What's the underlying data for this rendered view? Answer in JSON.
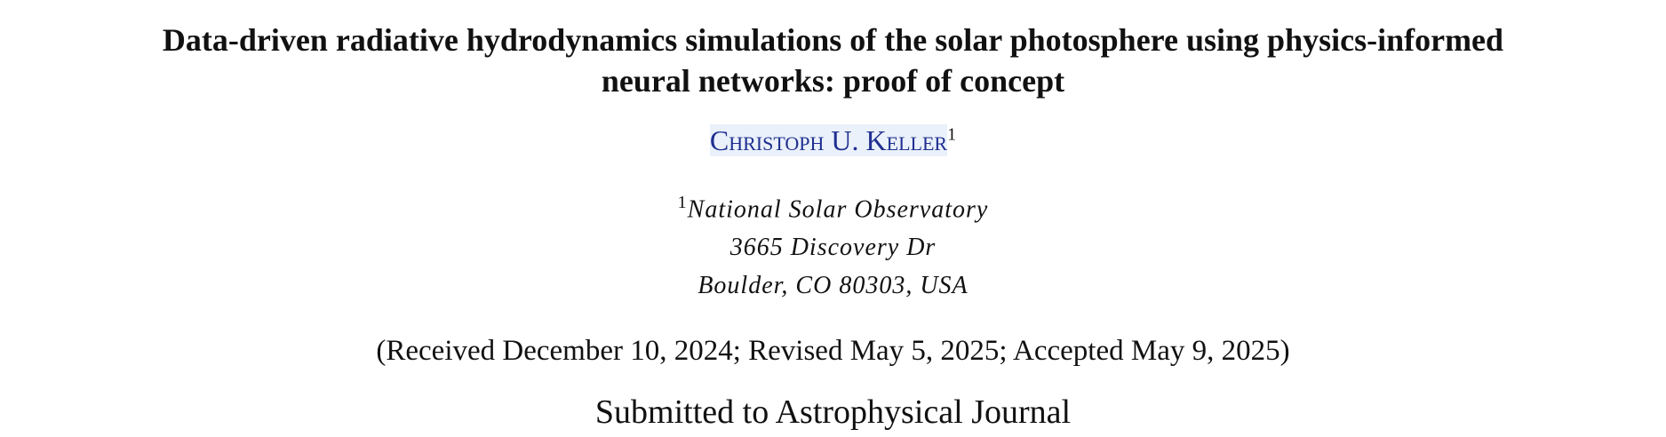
{
  "header": {
    "title_lines": [
      "Data-driven radiative hydrodynamics simulations of the solar photosphere using physics-informed",
      "neural networks: proof of concept"
    ],
    "author": {
      "name": "Christoph U. Keller",
      "affiliation_mark": "1"
    },
    "affiliation": {
      "mark": "1",
      "lines": [
        "National Solar Observatory",
        "3665 Discovery Dr",
        "Boulder, CO 80303, USA"
      ]
    },
    "dates": "(Received December 10, 2024; Revised May 5, 2025; Accepted May 9, 2025)",
    "journal": "Submitted to Astrophysical Journal"
  }
}
